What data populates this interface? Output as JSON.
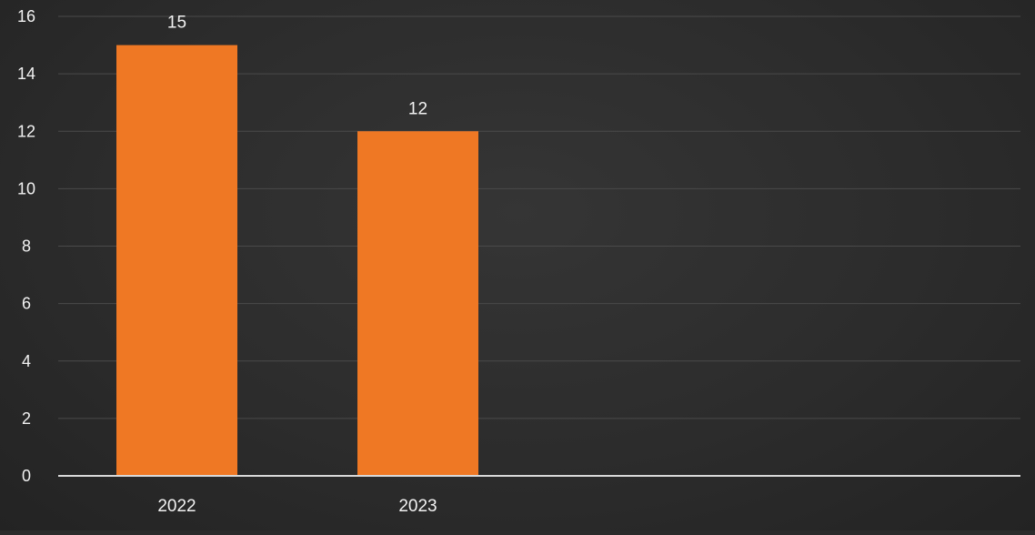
{
  "chart_data": {
    "type": "bar",
    "categories": [
      "2022",
      "2023"
    ],
    "values": [
      15,
      12
    ],
    "data_labels": [
      "15",
      "12"
    ],
    "y_ticks": [
      "0",
      "2",
      "4",
      "6",
      "8",
      "10",
      "12",
      "14",
      "16"
    ],
    "ylim": [
      0,
      16
    ],
    "grid": true,
    "legend": "none"
  },
  "colors": {
    "bar": "#ef7824",
    "bar_edge": "#f28a3c",
    "grid": "#4a4a4a",
    "axis": "#d9d9d9",
    "text": "#f2f2f2"
  }
}
